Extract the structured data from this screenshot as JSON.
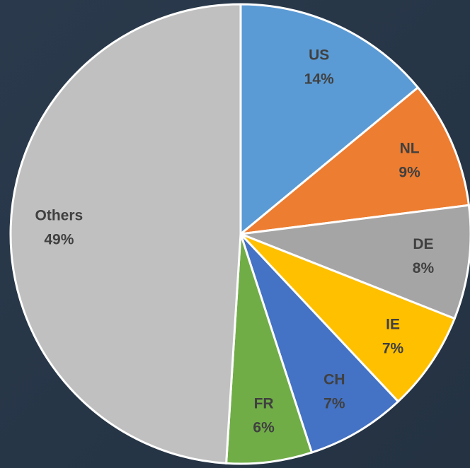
{
  "chart_data": {
    "type": "pie",
    "categories": [
      "US",
      "NL",
      "DE",
      "IE",
      "CH",
      "FR",
      "Others"
    ],
    "values": [
      14,
      9,
      8,
      7,
      7,
      6,
      49
    ],
    "value_labels": [
      "14%",
      "9%",
      "8%",
      "7%",
      "7%",
      "6%",
      "49%"
    ],
    "colors": [
      "#5b9bd5",
      "#ed7d31",
      "#a5a5a5",
      "#ffc000",
      "#4472c4",
      "#70ad47",
      "#c0c0c0"
    ]
  }
}
